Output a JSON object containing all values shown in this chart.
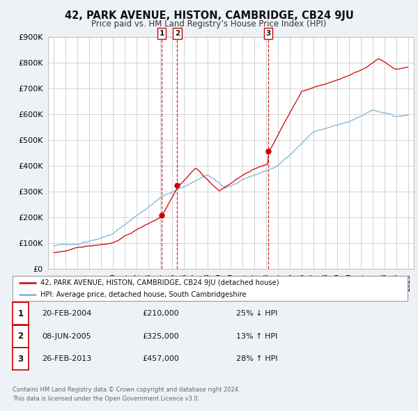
{
  "title": "42, PARK AVENUE, HISTON, CAMBRIDGE, CB24 9JU",
  "subtitle": "Price paid vs. HM Land Registry’s House Price Index (HPI)",
  "property_color": "#cc0000",
  "hpi_color": "#7fb3d3",
  "background_color": "#eef2f7",
  "plot_background": "#ffffff",
  "grid_color": "#cccccc",
  "transactions": [
    {
      "num": "1",
      "date": "20-FEB-2004",
      "price": "£210,000",
      "pct": "25%",
      "dir": "↓",
      "x_year": 2004.13,
      "y_val": 210000
    },
    {
      "num": "2",
      "date": "08-JUN-2005",
      "price": "£325,000",
      "pct": "13%",
      "dir": "↑",
      "x_year": 2005.44,
      "y_val": 325000
    },
    {
      "num": "3",
      "date": "26-FEB-2013",
      "price": "£457,000",
      "pct": "28%",
      "dir": "↑",
      "x_year": 2013.15,
      "y_val": 457000
    }
  ],
  "ylim": [
    0,
    900000
  ],
  "yticks": [
    0,
    100000,
    200000,
    300000,
    400000,
    500000,
    600000,
    700000,
    800000,
    900000
  ],
  "xlim_start": 1994.5,
  "xlim_end": 2025.5,
  "legend_line1": "42, PARK AVENUE, HISTON, CAMBRIDGE, CB24 9JU (detached house)",
  "legend_line2": "HPI: Average price, detached house, South Cambridgeshire",
  "footer_line1": "Contains HM Land Registry data © Crown copyright and database right 2024.",
  "footer_line2": "This data is licensed under the Open Government Licence v3.0."
}
